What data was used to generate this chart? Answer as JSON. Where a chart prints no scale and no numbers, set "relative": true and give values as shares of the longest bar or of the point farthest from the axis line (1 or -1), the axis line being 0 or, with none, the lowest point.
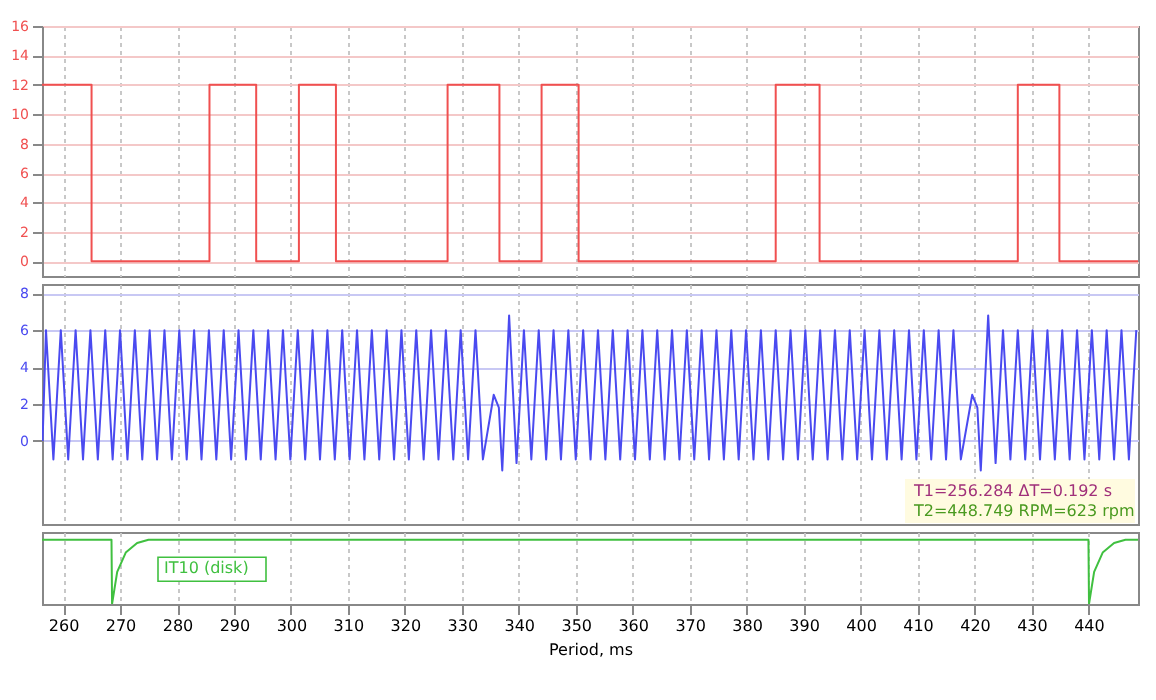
{
  "chart_data": [
    {
      "type": "step",
      "xlim": [
        256.3,
        448.7
      ],
      "xticks": [
        260,
        270,
        280,
        290,
        300,
        310,
        320,
        330,
        340,
        350,
        360,
        370,
        380,
        390,
        400,
        410,
        420,
        430,
        440
      ],
      "ylim": [
        -1,
        16
      ],
      "yticks": [
        0,
        2,
        4,
        6,
        8,
        10,
        12,
        14,
        16
      ],
      "grid": true,
      "tick_labels": "y",
      "series": [
        {
          "color": "#f05050",
          "x": [
            256.3,
            265.0,
            285.7,
            293.9,
            301.4,
            307.9,
            327.5,
            336.6,
            344.0,
            350.5,
            385.1,
            392.8,
            427.6,
            434.9,
            448.7
          ],
          "values": [
            12,
            0,
            12,
            0,
            12,
            0,
            12,
            0,
            12,
            0,
            12,
            0,
            12,
            0,
            0
          ]
        }
      ]
    },
    {
      "type": "line",
      "xlim": [
        256.3,
        448.7
      ],
      "xticks": [
        260,
        270,
        280,
        290,
        300,
        310,
        320,
        330,
        340,
        350,
        360,
        370,
        380,
        390,
        400,
        410,
        420,
        430,
        440
      ],
      "ylim": [
        -4.5,
        8.5
      ],
      "yticks": [
        0,
        2,
        4,
        6,
        8
      ],
      "grid": true,
      "tick_labels": "y",
      "annotations": [
        "T1=256.284 ΔT=0.192 s",
        "T2=448.749 RPM=623 rpm"
      ],
      "series": [
        {
          "color": "#4a4af0",
          "x": [
            256.4,
            257.0,
            258.3,
            259.6,
            260.9,
            262.2,
            263.5,
            264.8,
            266.1,
            267.4,
            268.7,
            270.0,
            271.3,
            272.6,
            273.9,
            275.2,
            276.5,
            277.8,
            279.1,
            280.4,
            281.7,
            283.0,
            284.3,
            285.6,
            286.9,
            288.2,
            289.5,
            290.8,
            292.1,
            293.4,
            294.7,
            296.0,
            297.3,
            298.6,
            299.9,
            301.2,
            302.5,
            303.8,
            305.1,
            306.4,
            307.7,
            309.0,
            310.3,
            311.6,
            312.9,
            314.2,
            315.5,
            316.8,
            318.1,
            319.4,
            320.7,
            322.0,
            323.3,
            324.6,
            325.9,
            327.2,
            328.5,
            329.8,
            331.1,
            332.4,
            333.7,
            335.6,
            336.5,
            337.1,
            338.3,
            339.6,
            340.9,
            342.2,
            343.5,
            344.8,
            346.1,
            347.4,
            348.7,
            350.0,
            351.3,
            352.6,
            353.9,
            355.2,
            356.5,
            357.8,
            359.1,
            360.4,
            361.7,
            363.0,
            364.3,
            365.6,
            366.9,
            368.2,
            369.5,
            370.8,
            372.1,
            373.4,
            374.7,
            376.0,
            377.3,
            378.6,
            379.9,
            381.2,
            382.5,
            383.8,
            385.1,
            386.4,
            387.7,
            389.0,
            390.3,
            391.6,
            392.9,
            394.2,
            395.5,
            396.8,
            398.1,
            399.4,
            400.7,
            402.0,
            403.3,
            404.6,
            405.9,
            407.2,
            408.5,
            409.8,
            411.1,
            412.4,
            413.7,
            415.0,
            416.3,
            417.6,
            419.6,
            420.5,
            421.1,
            422.4,
            423.7,
            425.0,
            426.3,
            427.6,
            428.9,
            430.2,
            431.5,
            432.8,
            434.1,
            435.4,
            436.7,
            438.0,
            439.3,
            440.6,
            441.9,
            443.2,
            444.5,
            445.8,
            447.1,
            448.4
          ],
          "values": [
            0,
            6,
            -1,
            6,
            -1,
            6,
            -1,
            6,
            -1,
            6,
            -1,
            6,
            -1,
            6,
            -1,
            6,
            -1,
            6,
            -1,
            6,
            -1,
            6,
            -1,
            6,
            -1,
            6,
            -1,
            6,
            -1,
            6,
            -1,
            6,
            -1,
            6,
            -1,
            6,
            -1,
            6,
            -1,
            6,
            -1,
            6,
            -1,
            6,
            -1,
            6,
            -1,
            6,
            -1,
            6,
            -1,
            6,
            -1,
            6,
            -1,
            6,
            -1,
            6,
            -1,
            6,
            -1,
            2.5,
            1.8,
            -1.6,
            6.8,
            -1.2,
            6,
            -1,
            6,
            -1,
            6,
            -1,
            6,
            -1,
            6,
            -1,
            6,
            -1,
            6,
            -1,
            6,
            -1,
            6,
            -1,
            6,
            -1,
            6,
            -1,
            6,
            -1,
            6,
            -1,
            6,
            -1,
            6,
            -1,
            6,
            -1,
            6,
            -1,
            6,
            -1,
            6,
            -1,
            6,
            -1,
            6,
            -1,
            6,
            -1,
            6,
            -1,
            6,
            -1,
            6,
            -1,
            6,
            -1,
            6,
            -1,
            6,
            -1,
            6,
            -1,
            6,
            -1,
            2.5,
            1.8,
            -1.6,
            6.8,
            -1.2,
            6,
            -1,
            6,
            -1,
            6,
            -1,
            6,
            -1,
            6,
            -1,
            6,
            -1,
            6,
            -1,
            6,
            -1,
            6,
            -1,
            6
          ]
        }
      ]
    },
    {
      "type": "line",
      "relative": true,
      "xlim": [
        256.3,
        448.7
      ],
      "xticks": [
        260,
        270,
        280,
        290,
        300,
        310,
        320,
        330,
        340,
        350,
        360,
        370,
        380,
        390,
        400,
        410,
        420,
        430,
        440
      ],
      "xlabel": "Period, ms",
      "grid": true,
      "tick_labels": "x",
      "series": [
        {
          "name": "IT10 (disk)",
          "color": "#40c040",
          "x": [
            256.3,
            268.5,
            268.6,
            269.5,
            271.0,
            273.0,
            275.0,
            440.0,
            440.1,
            441.0,
            442.5,
            444.5,
            446.5,
            448.7
          ],
          "values": [
            1,
            1,
            0,
            0.5,
            0.8,
            0.95,
            1,
            1,
            0,
            0.5,
            0.8,
            0.95,
            1,
            1
          ]
        }
      ]
    }
  ]
}
